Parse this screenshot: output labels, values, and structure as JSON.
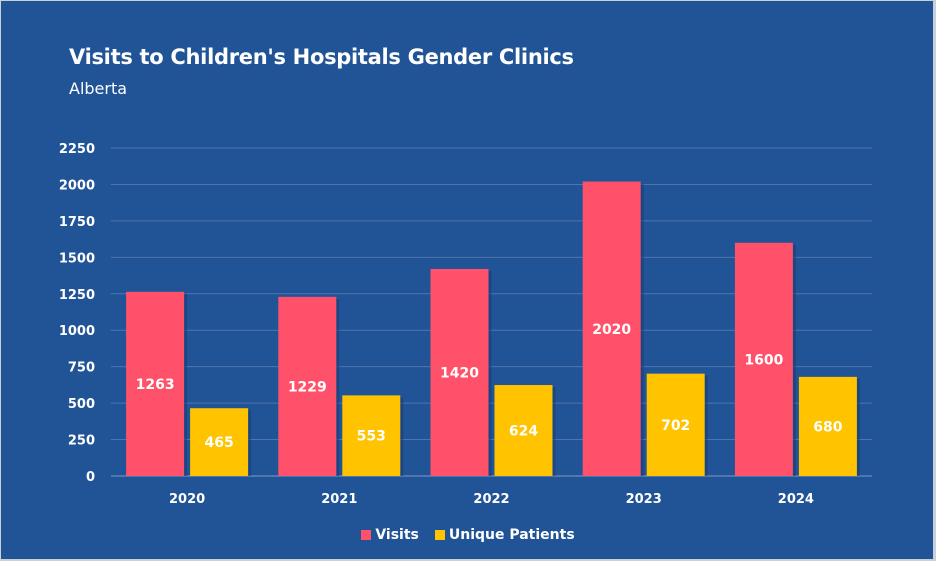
{
  "chart_data": {
    "type": "bar",
    "title": "Visits to Children's Hospitals Gender Clinics",
    "subtitle": "Alberta",
    "xlabel": "",
    "ylabel": "",
    "categories": [
      "2020",
      "2021",
      "2022",
      "2023",
      "2024"
    ],
    "series": [
      {
        "name": "Visits",
        "color": "#ff526a",
        "values": [
          1263,
          1229,
          1420,
          2020,
          1600
        ]
      },
      {
        "name": "Unique Patients",
        "color": "#ffc300",
        "values": [
          465,
          553,
          624,
          702,
          680
        ]
      }
    ],
    "ylim": [
      0,
      2250
    ],
    "yticks": [
      0,
      250,
      500,
      750,
      1000,
      1250,
      1500,
      1750,
      2000,
      2250
    ],
    "grid": true,
    "data_labels": true,
    "legend_position": "bottom-center"
  },
  "colors": {
    "background": "#215497",
    "text": "#ffffff"
  }
}
